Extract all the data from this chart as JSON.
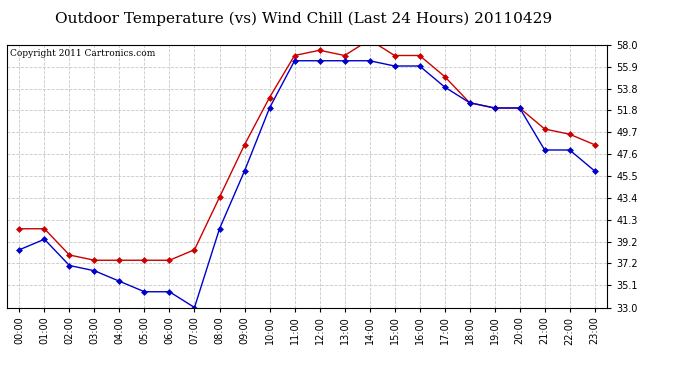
{
  "title": "Outdoor Temperature (vs) Wind Chill (Last 24 Hours) 20110429",
  "copyright": "Copyright 2011 Cartronics.com",
  "x_labels": [
    "00:00",
    "01:00",
    "02:00",
    "03:00",
    "04:00",
    "05:00",
    "06:00",
    "07:00",
    "08:00",
    "09:00",
    "10:00",
    "11:00",
    "12:00",
    "13:00",
    "14:00",
    "15:00",
    "16:00",
    "17:00",
    "18:00",
    "19:00",
    "20:00",
    "21:00",
    "22:00",
    "23:00"
  ],
  "temp_red": [
    40.5,
    40.5,
    38.0,
    37.5,
    37.5,
    37.5,
    37.5,
    38.5,
    43.5,
    48.5,
    53.0,
    57.0,
    57.5,
    57.0,
    58.5,
    57.0,
    57.0,
    55.0,
    52.5,
    52.0,
    52.0,
    50.0,
    49.5,
    48.5
  ],
  "temp_blue": [
    38.5,
    39.5,
    37.0,
    36.5,
    35.5,
    34.5,
    34.5,
    33.0,
    40.5,
    46.0,
    52.0,
    56.5,
    56.5,
    56.5,
    56.5,
    56.0,
    56.0,
    54.0,
    52.5,
    52.0,
    52.0,
    48.0,
    48.0,
    46.0
  ],
  "ylim": [
    33.0,
    58.0
  ],
  "yticks": [
    33.0,
    35.1,
    37.2,
    39.2,
    41.3,
    43.4,
    45.5,
    47.6,
    49.7,
    51.8,
    53.8,
    55.9,
    58.0
  ],
  "line_color_red": "#cc0000",
  "line_color_blue": "#0000cc",
  "background_color": "#ffffff",
  "grid_color": "#c8c8c8",
  "title_fontsize": 11,
  "copyright_fontsize": 6.5,
  "tick_fontsize": 7,
  "marker_size": 3
}
